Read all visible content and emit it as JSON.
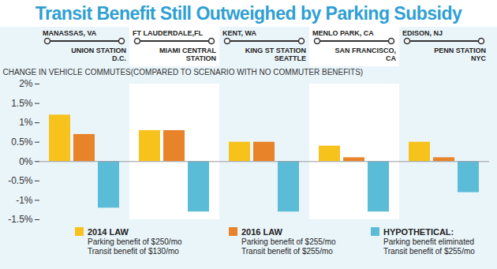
{
  "chart_data": {
    "type": "bar",
    "title": "Transit Benefit Still Outweighed by Parking Subsidy",
    "y_label": "CHANGE IN VEHICLE COMMUTES(COMPARED TO SCENARIO WITH NO COMMUTER BENEFITS)",
    "categories": [
      "MANASSAS, VA",
      "FT LAUDERDALE,FL",
      "KENT, WA",
      "MENLO PARK, CA",
      "EDISON, NJ"
    ],
    "destinations": [
      "UNION STATION D.C.",
      "MIAMI CENTRAL STATION",
      "KING ST STATION SEATTLE",
      "SAN FRANCISCO, CA",
      "PENN STATION NYC"
    ],
    "series": [
      {
        "name": "2014 LAW",
        "color": "#f7c21b",
        "description": [
          "Parking benefit of $250/mo",
          "Transit benefit of $130/mo"
        ],
        "values": [
          1.2,
          0.8,
          0.5,
          0.4,
          0.5
        ]
      },
      {
        "name": "2016 LAW",
        "color": "#e8832a",
        "description": [
          "Parking benefit of $255/mo",
          "Transit benefit of $255/mo"
        ],
        "values": [
          0.7,
          0.8,
          0.5,
          0.1,
          0.1
        ]
      },
      {
        "name": "HYPOTHETICAL:",
        "color": "#5bbcd8",
        "description": [
          "Parking benefit eliminated",
          "Transit benefit of $255/mo"
        ],
        "values": [
          -1.2,
          -1.3,
          -1.3,
          -1.3,
          -0.8
        ]
      }
    ],
    "ylim": [
      -1.5,
      2
    ],
    "yticks": [
      {
        "value": -1.5,
        "label": "-1.5%"
      },
      {
        "value": -1,
        "label": "-1%"
      },
      {
        "value": -0.5,
        "label": "-0.5%"
      },
      {
        "value": 0,
        "label": "0%"
      },
      {
        "value": 0.5,
        "label": "0.5%"
      },
      {
        "value": 1,
        "label": "1%"
      },
      {
        "value": 1.5,
        "label": "1.5%"
      },
      {
        "value": 2,
        "label": "2%"
      }
    ],
    "grid": false,
    "legend": "bottom",
    "data_labels": false
  }
}
